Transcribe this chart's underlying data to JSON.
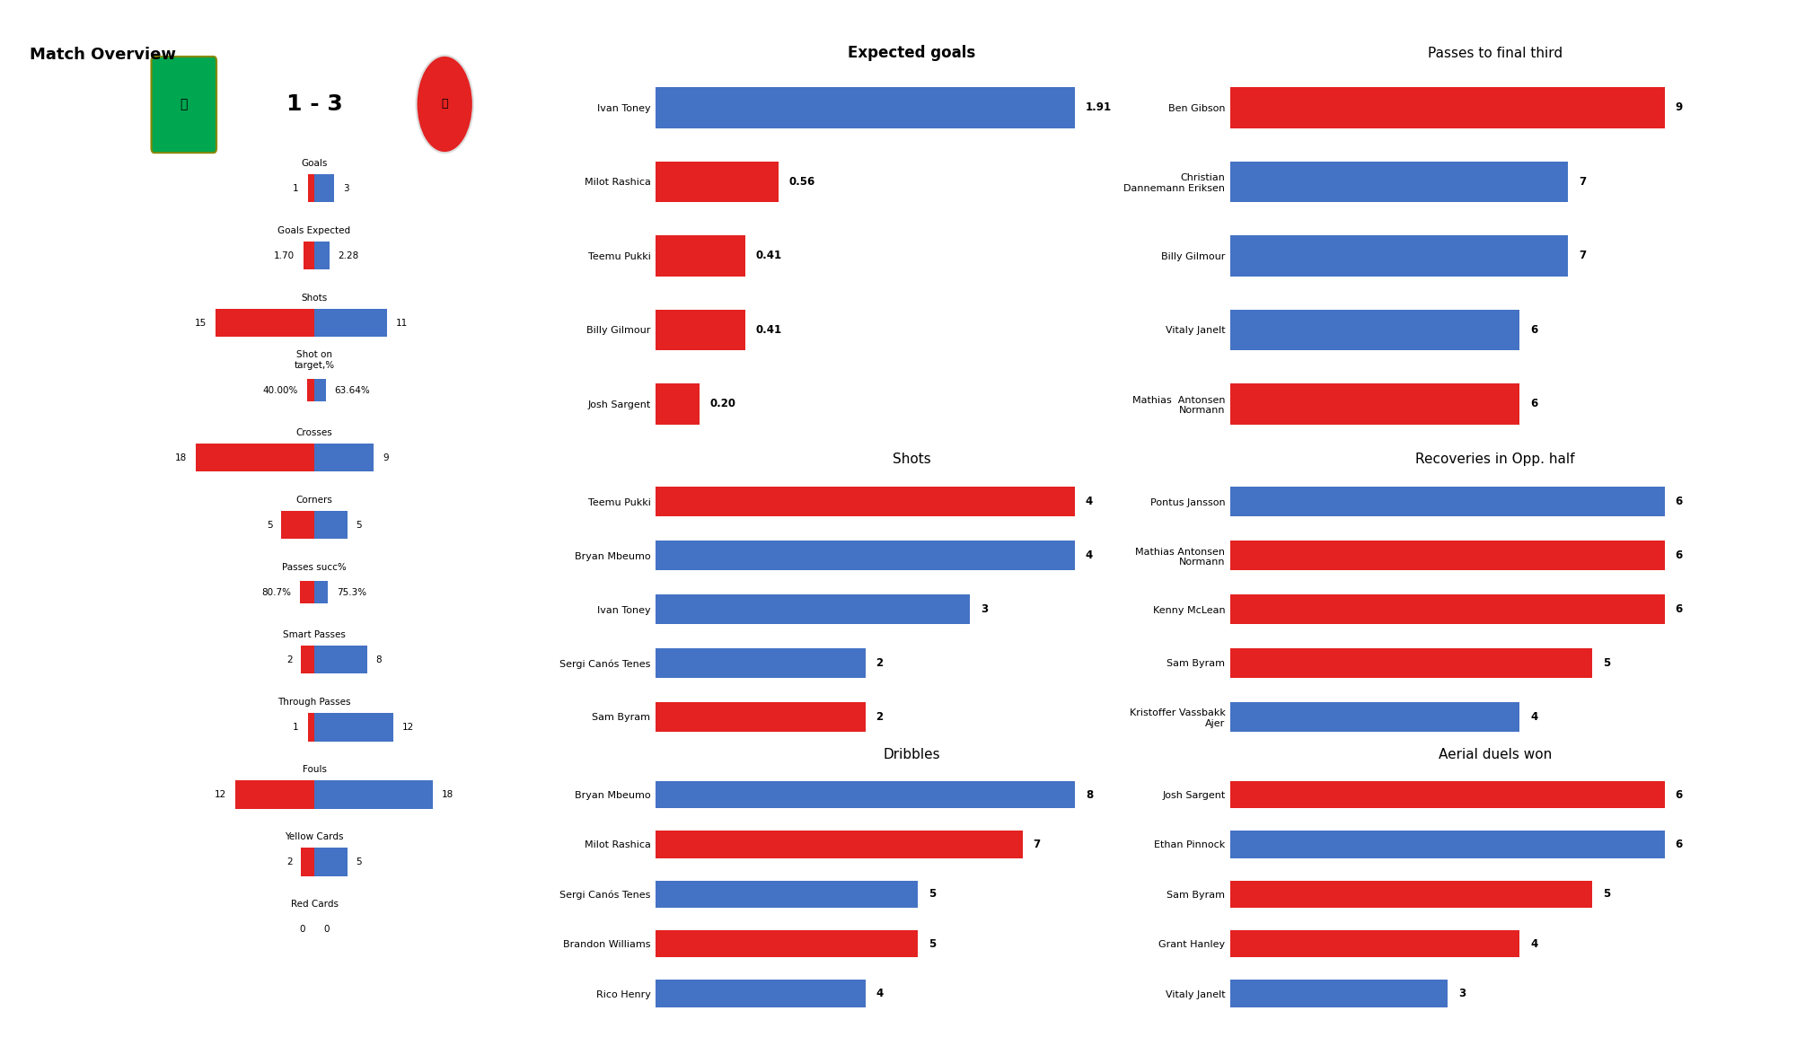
{
  "title": "Match Overview",
  "score": "1 - 3",
  "team1_color": "#E32221",
  "team2_color": "#4472C4",
  "bg_color": "#FFFFFF",
  "overview_stats": [
    {
      "label": "Goals",
      "v1": 1,
      "v2": 3,
      "v1_str": "1",
      "v2_str": "3",
      "is_pct": false,
      "scale": 18
    },
    {
      "label": "Goals Expected",
      "v1": 1.7,
      "v2": 2.28,
      "v1_str": "1.70",
      "v2_str": "2.28",
      "is_pct": false,
      "scale": 18
    },
    {
      "label": "Shots",
      "v1": 15,
      "v2": 11,
      "v1_str": "15",
      "v2_str": "11",
      "is_pct": false,
      "scale": 18
    },
    {
      "label": "Shot on\ntarget,%",
      "v1": 40.0,
      "v2": 63.64,
      "v1_str": "40.00%",
      "v2_str": "63.64%",
      "is_pct": true,
      "scale": 100
    },
    {
      "label": "Crosses",
      "v1": 18,
      "v2": 9,
      "v1_str": "18",
      "v2_str": "9",
      "is_pct": false,
      "scale": 18
    },
    {
      "label": "Corners",
      "v1": 5,
      "v2": 5,
      "v1_str": "5",
      "v2_str": "5",
      "is_pct": false,
      "scale": 18
    },
    {
      "label": "Passes succ%",
      "v1": 80.7,
      "v2": 75.3,
      "v1_str": "80.7%",
      "v2_str": "75.3%",
      "is_pct": true,
      "scale": 100
    },
    {
      "label": "Smart Passes",
      "v1": 2,
      "v2": 8,
      "v1_str": "2",
      "v2_str": "8",
      "is_pct": false,
      "scale": 18
    },
    {
      "label": "Through Passes",
      "v1": 1,
      "v2": 12,
      "v1_str": "1",
      "v2_str": "12",
      "is_pct": false,
      "scale": 18
    },
    {
      "label": "Fouls",
      "v1": 12,
      "v2": 18,
      "v1_str": "12",
      "v2_str": "18",
      "is_pct": false,
      "scale": 18
    },
    {
      "label": "Yellow Cards",
      "v1": 2,
      "v2": 5,
      "v1_str": "2",
      "v2_str": "5",
      "is_pct": false,
      "scale": 18
    },
    {
      "label": "Red Cards",
      "v1": 0,
      "v2": 0,
      "v1_str": "0",
      "v2_str": "0",
      "is_pct": false,
      "scale": 18
    }
  ],
  "expected_goals": {
    "title": "Expected goals",
    "title_bold": true,
    "players": [
      "Ivan Toney",
      "Milot Rashica",
      "Teemu Pukki",
      "Billy Gilmour",
      "Josh Sargent"
    ],
    "values": [
      1.91,
      0.56,
      0.41,
      0.41,
      0.2
    ],
    "colors": [
      "#4472C4",
      "#E32221",
      "#E32221",
      "#E32221",
      "#E32221"
    ],
    "labels": [
      "1.91",
      "0.56",
      "0.41",
      "0.41",
      "0.20"
    ]
  },
  "shots": {
    "title": "Shots",
    "title_bold": false,
    "players": [
      "Teemu Pukki",
      "Bryan Mbeumo",
      "Ivan Toney",
      "Sergi Canós Tenes",
      "Sam Byram"
    ],
    "values": [
      4,
      4,
      3,
      2,
      2
    ],
    "colors": [
      "#E32221",
      "#4472C4",
      "#4472C4",
      "#4472C4",
      "#E32221"
    ],
    "labels": [
      "4",
      "4",
      "3",
      "2",
      "2"
    ]
  },
  "dribbles": {
    "title": "Dribbles",
    "title_bold": false,
    "players": [
      "Bryan Mbeumo",
      "Milot Rashica",
      "Sergi Canós Tenes",
      "Brandon Williams",
      "Rico Henry"
    ],
    "values": [
      8,
      7,
      5,
      5,
      4
    ],
    "colors": [
      "#4472C4",
      "#E32221",
      "#4472C4",
      "#E32221",
      "#4472C4"
    ],
    "labels": [
      "8",
      "7",
      "5",
      "5",
      "4"
    ]
  },
  "passes_final_third": {
    "title": "Passes to final third",
    "title_bold": false,
    "players": [
      "Ben Gibson",
      "Christian\nDannemann Eriksen",
      "Billy Gilmour",
      "Vitaly Janelt",
      "Mathias  Antonsen\nNormann"
    ],
    "values": [
      9,
      7,
      7,
      6,
      6
    ],
    "colors": [
      "#E32221",
      "#4472C4",
      "#4472C4",
      "#4472C4",
      "#E32221"
    ],
    "labels": [
      "9",
      "7",
      "7",
      "6",
      "6"
    ]
  },
  "recoveries_opp_half": {
    "title": "Recoveries in Opp. half",
    "title_bold": false,
    "players": [
      "Pontus Jansson",
      "Mathias Antonsen\nNormann",
      "Kenny McLean",
      "Sam Byram",
      "Kristoffer Vassbakk\nAjer"
    ],
    "values": [
      6,
      6,
      6,
      5,
      4
    ],
    "colors": [
      "#4472C4",
      "#E32221",
      "#E32221",
      "#E32221",
      "#4472C4"
    ],
    "labels": [
      "6",
      "6",
      "6",
      "5",
      "4"
    ]
  },
  "aerial_duels_won": {
    "title": "Aerial duels won",
    "title_bold": false,
    "players": [
      "Josh Sargent",
      "Ethan Pinnock",
      "Sam Byram",
      "Grant Hanley",
      "Vitaly Janelt"
    ],
    "values": [
      6,
      6,
      5,
      4,
      3
    ],
    "colors": [
      "#E32221",
      "#4472C4",
      "#E32221",
      "#E32221",
      "#4472C4"
    ],
    "labels": [
      "6",
      "6",
      "5",
      "4",
      "3"
    ]
  }
}
